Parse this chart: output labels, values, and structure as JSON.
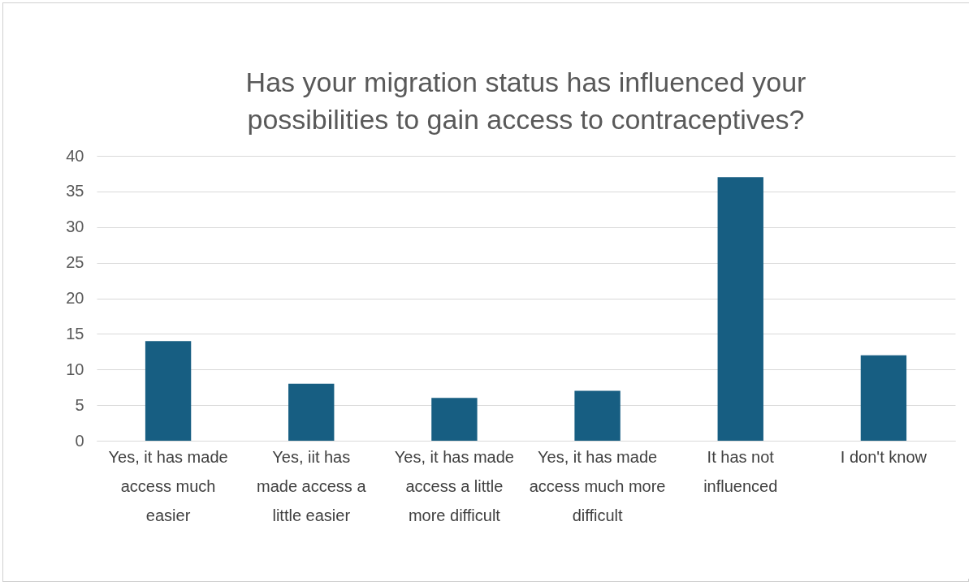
{
  "chart_data": {
    "type": "bar",
    "title": "Has your migration status has influenced your possibilities to gain access to contraceptives?",
    "categories": [
      "Yes, it has made access much easier",
      "Yes, iit has made access a little easier",
      "Yes, it has made access a little more difficult",
      "Yes, it has made access much more difficult",
      "It has not influenced",
      "I don't know"
    ],
    "values": [
      14,
      8,
      6,
      7,
      37,
      12
    ],
    "color": "#175e82",
    "ylim": [
      0,
      40
    ],
    "yticks": [
      0,
      5,
      10,
      15,
      20,
      25,
      30,
      35,
      40
    ],
    "grid": "y"
  }
}
